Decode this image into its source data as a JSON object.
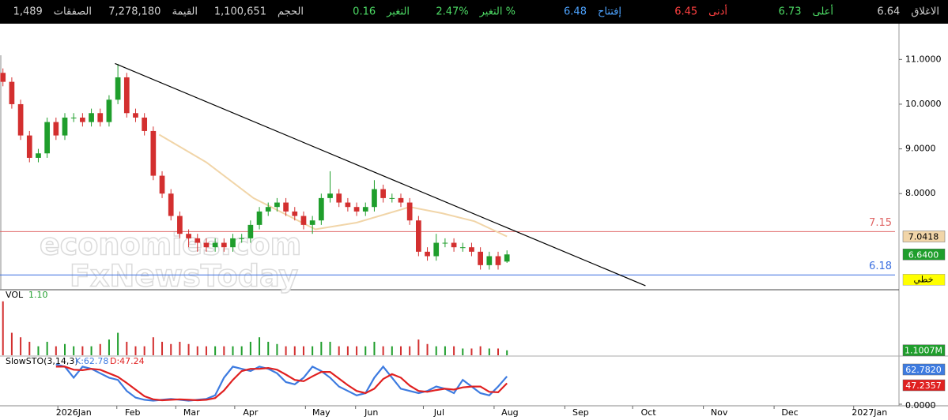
{
  "header": {
    "items": [
      {
        "label": "الاغلاق",
        "value": "6.64",
        "color": "#d0d0d0"
      },
      {
        "label": "أعلى",
        "value": "6.73",
        "color": "#4cd964"
      },
      {
        "label": "أدنى",
        "value": "6.45",
        "color": "#ff4040"
      },
      {
        "label": "إفتتاح",
        "value": "6.48",
        "color": "#4da3ff"
      },
      {
        "label": "التغير %",
        "value": "2.47%",
        "color": "#4cd964"
      },
      {
        "label": "التغير",
        "value": "0.16",
        "color": "#4cd964"
      },
      {
        "label": "الحجم",
        "value": "1,100,651",
        "color": "#d0d0d0"
      },
      {
        "label": "القيمة",
        "value": "7,278,180",
        "color": "#d0d0d0"
      },
      {
        "label": "الصفقات",
        "value": "1,489",
        "color": "#d0d0d0"
      }
    ]
  },
  "chart_data": [
    {
      "type": "candlestick",
      "x": [
        1,
        4,
        7,
        10,
        13,
        16,
        19,
        22,
        25,
        28,
        31,
        34,
        37,
        40,
        43,
        46,
        49,
        52,
        55,
        58,
        61,
        64,
        67,
        70,
        73,
        76,
        79,
        82,
        85,
        88,
        91,
        94,
        97,
        100,
        103,
        106,
        109,
        112,
        115,
        118,
        121,
        124,
        127,
        130,
        133,
        136,
        139,
        142,
        145,
        148,
        151,
        154,
        157,
        160,
        163,
        166,
        169,
        172
      ],
      "open": [
        10.7,
        10.5,
        10.0,
        9.3,
        8.8,
        8.9,
        9.6,
        9.3,
        9.7,
        9.7,
        9.6,
        9.8,
        9.6,
        10.1,
        10.6,
        9.8,
        9.7,
        9.4,
        8.4,
        8.0,
        7.5,
        7.1,
        7.0,
        6.9,
        6.8,
        6.9,
        6.8,
        7.0,
        7.0,
        7.3,
        7.6,
        7.7,
        7.8,
        7.6,
        7.5,
        7.3,
        7.4,
        7.9,
        8.0,
        7.8,
        7.7,
        7.6,
        7.7,
        8.1,
        7.9,
        7.9,
        7.8,
        7.4,
        6.7,
        6.6,
        6.9,
        6.9,
        6.8,
        6.8,
        6.7,
        6.4,
        6.6,
        6.48
      ],
      "high": [
        10.8,
        10.6,
        10.1,
        9.4,
        9.0,
        9.7,
        9.7,
        9.8,
        9.8,
        9.8,
        9.9,
        9.9,
        10.2,
        10.9,
        10.7,
        9.9,
        9.8,
        9.5,
        8.5,
        8.1,
        7.6,
        7.2,
        7.1,
        7.0,
        7.0,
        7.0,
        7.1,
        7.1,
        7.4,
        7.7,
        7.8,
        7.9,
        7.9,
        7.7,
        7.6,
        7.5,
        8.0,
        8.5,
        8.1,
        7.9,
        7.8,
        7.8,
        8.3,
        8.2,
        8.0,
        8.0,
        7.9,
        7.5,
        6.8,
        7.1,
        7.0,
        7.0,
        6.9,
        6.9,
        6.8,
        6.7,
        6.7,
        6.73
      ],
      "low": [
        10.4,
        9.9,
        9.2,
        8.7,
        8.7,
        8.8,
        9.2,
        9.2,
        9.6,
        9.5,
        9.5,
        9.5,
        9.5,
        10.0,
        9.7,
        9.6,
        9.3,
        8.3,
        7.9,
        7.4,
        7.0,
        6.8,
        6.7,
        6.7,
        6.7,
        6.7,
        6.7,
        6.9,
        6.9,
        7.2,
        7.5,
        7.6,
        7.5,
        7.4,
        7.2,
        7.1,
        7.3,
        7.8,
        7.7,
        7.6,
        7.5,
        7.5,
        7.6,
        7.8,
        7.8,
        7.7,
        7.3,
        6.6,
        6.5,
        6.5,
        6.8,
        6.7,
        6.7,
        6.6,
        6.3,
        6.3,
        6.3,
        6.45
      ],
      "close": [
        10.5,
        10.0,
        9.3,
        8.8,
        8.9,
        9.6,
        9.3,
        9.7,
        9.7,
        9.6,
        9.8,
        9.6,
        10.1,
        10.6,
        9.8,
        9.7,
        9.4,
        8.4,
        8.0,
        7.5,
        7.1,
        7.0,
        6.9,
        6.8,
        6.9,
        6.8,
        7.0,
        7.0,
        7.3,
        7.6,
        7.7,
        7.8,
        7.6,
        7.5,
        7.3,
        7.4,
        7.9,
        8.0,
        7.8,
        7.7,
        7.6,
        7.7,
        8.1,
        7.9,
        7.9,
        7.8,
        7.4,
        6.7,
        6.6,
        6.9,
        6.9,
        6.8,
        6.8,
        6.7,
        6.4,
        6.6,
        6.4,
        6.64
      ],
      "up_color": "#1f9e2c",
      "down_color": "#d32f2f",
      "xlim": [
        0,
        305
      ],
      "ylim": [
        5.85,
        11.8
      ],
      "yticks": [
        {
          "value": 11,
          "label": "11.0000"
        },
        {
          "value": 10,
          "label": "10.0000"
        },
        {
          "value": 9,
          "label": "9.0000"
        },
        {
          "value": 8,
          "label": "8.0000"
        }
      ],
      "xticks": [
        {
          "value": 25,
          "label": "2026Jan"
        },
        {
          "value": 45,
          "label": "Feb"
        },
        {
          "value": 65,
          "label": "Mar"
        },
        {
          "value": 85,
          "label": "Apr"
        },
        {
          "value": 109,
          "label": "May"
        },
        {
          "value": 126,
          "label": "Jun"
        },
        {
          "value": 149,
          "label": "Jul"
        },
        {
          "value": 173,
          "label": "Aug"
        },
        {
          "value": 197,
          "label": "Sep"
        },
        {
          "value": 220,
          "label": "Oct"
        },
        {
          "value": 244,
          "label": "Nov"
        },
        {
          "value": 268,
          "label": "Dec"
        },
        {
          "value": 295,
          "label": "2027Jan"
        }
      ],
      "moving_average": {
        "x": [
          54,
          70,
          86,
          107,
          121,
          139,
          150,
          161,
          172
        ],
        "values": [
          9.32,
          8.7,
          7.9,
          7.2,
          7.35,
          7.7,
          7.56,
          7.38,
          7.0418
        ],
        "color": "#f1d5a8"
      },
      "trendline": {
        "x": [
          39,
          219
        ],
        "values": [
          10.91,
          5.94
        ],
        "color": "#000000"
      },
      "hlines": [
        {
          "value": 7.15,
          "color": "#e06666"
        },
        {
          "value": 6.18,
          "color": "#3b6fe0",
          "tag": "خطي",
          "tag_color": "#ffff00"
        }
      ],
      "price_tags": [
        {
          "value": 7.0418,
          "color": "#f1d5a8"
        },
        {
          "value": 6.64,
          "label": "6.6400",
          "color": "#1f9e2c"
        }
      ],
      "watermark": [
        "economies.com",
        "FxNewsToday"
      ]
    },
    {
      "type": "bar",
      "title": "VOL",
      "legend_value": {
        "value": 1.1,
        "label": "1.10"
      },
      "values": [
        12,
        5,
        4,
        3,
        2,
        3,
        2,
        2.5,
        2,
        2,
        2,
        2.5,
        3.5,
        5,
        3,
        2,
        2,
        4,
        3,
        2.5,
        3,
        2.5,
        2,
        2,
        2,
        2,
        2,
        2,
        3,
        4,
        3,
        2.5,
        2,
        2,
        2,
        2,
        3,
        3,
        2,
        2,
        2,
        2,
        3,
        2,
        2,
        2,
        2,
        3.5,
        2.5,
        2,
        2,
        2,
        1.5,
        1.5,
        2,
        1.5,
        1.5,
        1.1007
      ],
      "ylim": [
        0,
        14.4
      ],
      "last_tag": {
        "value": 1.1007,
        "label": "1.1007M",
        "color": "#1f9e2c"
      }
    },
    {
      "type": "line",
      "title": "SlowSTO(3,14,3)",
      "series": [
        {
          "name": "K:62.78",
          "color": "#3d7be0",
          "values": [
            null,
            null,
            null,
            null,
            null,
            null,
            90,
            85,
            60,
            85,
            80,
            70,
            60,
            55,
            30,
            15,
            10,
            8,
            10,
            12,
            10,
            8,
            10,
            12,
            20,
            60,
            85,
            80,
            75,
            85,
            80,
            70,
            50,
            45,
            60,
            85,
            75,
            60,
            40,
            30,
            20,
            25,
            60,
            85,
            60,
            35,
            30,
            25,
            30,
            40,
            35,
            25,
            55,
            40,
            25,
            20,
            40,
            62.78
          ]
        },
        {
          "name": "D:47.24",
          "color": "#e02020",
          "values": [
            null,
            null,
            null,
            null,
            null,
            null,
            85,
            85,
            78,
            77,
            80,
            78,
            70,
            62,
            48,
            33,
            18,
            11,
            9,
            10,
            11,
            10,
            9,
            10,
            14,
            31,
            55,
            75,
            80,
            80,
            82,
            78,
            67,
            55,
            52,
            63,
            73,
            73,
            58,
            43,
            30,
            25,
            35,
            57,
            68,
            60,
            42,
            30,
            28,
            32,
            35,
            33,
            38,
            40,
            40,
            28,
            27,
            47.24
          ]
        }
      ],
      "ylim": [
        0,
        100
      ],
      "yticks": [
        {
          "value": 0,
          "label": "0.0000"
        }
      ],
      "last_tags": [
        {
          "value": 62.782,
          "label": "62.7820"
        },
        {
          "value": 47.2357,
          "label": "47.2357"
        }
      ]
    }
  ]
}
